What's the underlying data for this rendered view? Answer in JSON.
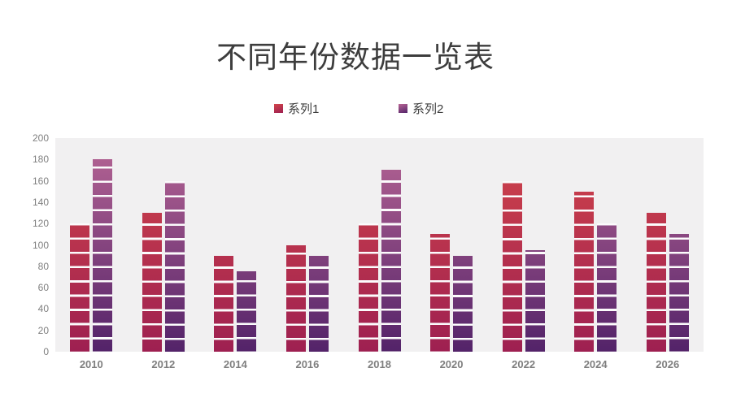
{
  "title": "不同年份数据一览表",
  "legend": [
    {
      "label": "系列1",
      "series": "series1"
    },
    {
      "label": "系列2",
      "series": "series2"
    }
  ],
  "colors": {
    "series1_light": "#d2454a",
    "series1_dark": "#9e2051",
    "series2_light": "#b86695",
    "series2_dark": "#532369",
    "plot_bg": "#f1f0f1",
    "axis_label": "#7f7f7f",
    "title": "#3d3d3d",
    "segment_gap": "#fcfbfc"
  },
  "chart_data": {
    "type": "bar",
    "title": "不同年份数据一览表",
    "categories": [
      "2010",
      "2012",
      "2014",
      "2016",
      "2018",
      "2020",
      "2022",
      "2024",
      "2026"
    ],
    "series": [
      {
        "name": "系列1",
        "values": [
          120,
          130,
          90,
          100,
          120,
          110,
          160,
          150,
          130
        ]
      },
      {
        "name": "系列2",
        "values": [
          180,
          160,
          75,
          90,
          170,
          90,
          95,
          120,
          110
        ]
      }
    ],
    "xlabel": "",
    "ylabel": "",
    "ylim": [
      0,
      200
    ],
    "yticks": [
      0,
      20,
      40,
      60,
      80,
      100,
      120,
      140,
      160,
      180,
      200
    ],
    "grid": false,
    "legend_position": "top",
    "bar_style": "segmented-gradient"
  }
}
